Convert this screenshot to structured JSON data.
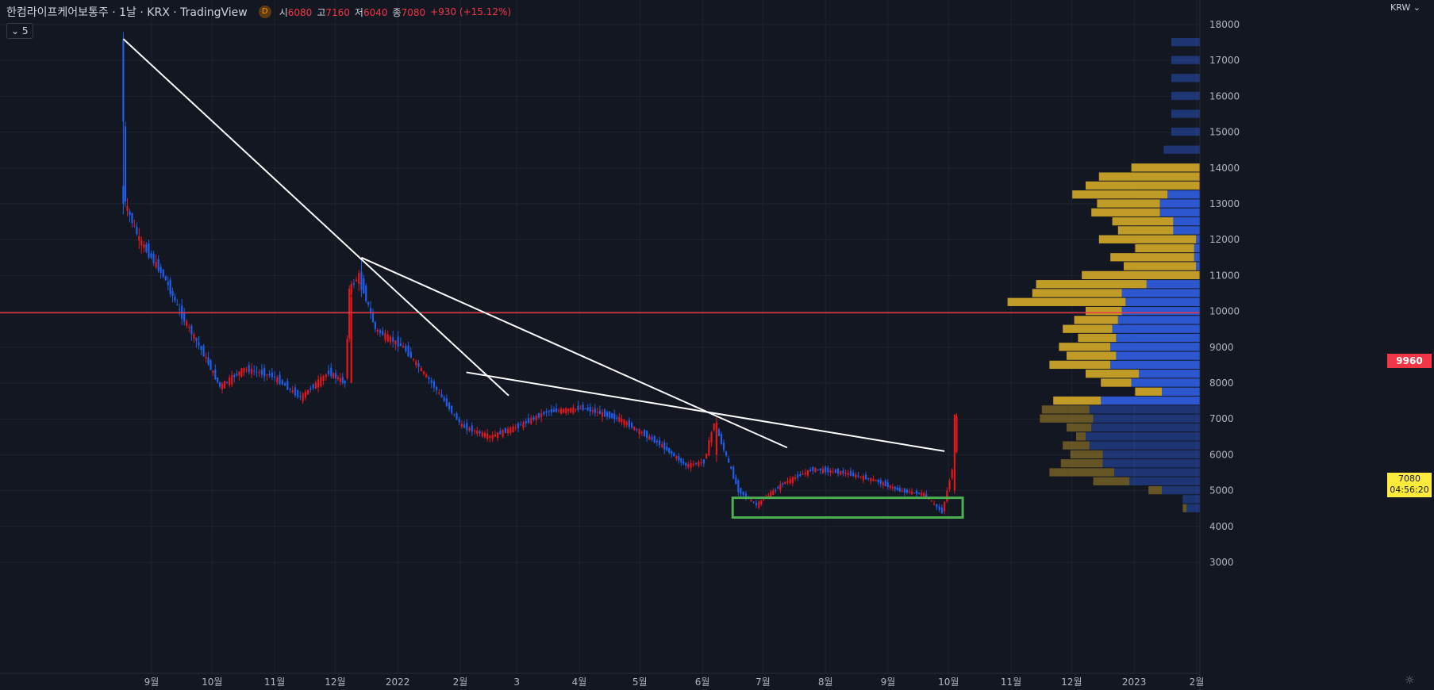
{
  "header": {
    "title": "한컴라이프케어보통주 · 1날 · KRX · TradingView",
    "badge": "D",
    "open_label": "시",
    "open": "6080",
    "high_label": "고",
    "high": "7160",
    "low_label": "저",
    "low": "6040",
    "close_label": "종",
    "close": "7080",
    "change": "+930 (+15.12%)"
  },
  "indicator_toggle": "⌄ 5",
  "price_axis": {
    "currency": "KRW ⌄",
    "ticks": [
      "18000",
      "17000",
      "16000",
      "15000",
      "14000",
      "13000",
      "12000",
      "11000",
      "10000",
      "9000",
      "8000",
      "7000",
      "6000",
      "5000",
      "4000",
      "3000"
    ],
    "hline_label": "9960",
    "last_price": "7080",
    "countdown": "04:56:20"
  },
  "time_axis": {
    "labels": [
      "9월",
      "10월",
      "11월",
      "12월",
      "2022",
      "2월",
      "3",
      "4월",
      "5월",
      "6월",
      "7월",
      "8월",
      "9월",
      "10월",
      "11월",
      "12월",
      "2023",
      "2월"
    ]
  },
  "colors": {
    "background": "#131722",
    "grid": "#1f2330",
    "up": "#e5171b",
    "down": "#1f5eea",
    "hline": "#f23645",
    "trendline": "#ffffff",
    "box": "#4caf50",
    "vp_up": "#c9a227",
    "vp_down": "#2d5bd8"
  },
  "chart_data": {
    "type": "candlestick",
    "symbol": "한컴라이프케어보통주",
    "interval": "1날",
    "exchange": "KRX",
    "y_range": [
      2700,
      18500
    ],
    "horizontal_line": 9960,
    "last": 7080,
    "price_path": [
      {
        "date": "2021-08-18",
        "price": 17600
      },
      {
        "date": "2021-08-20",
        "price": 13000
      },
      {
        "date": "2021-08-27",
        "price": 12000
      },
      {
        "date": "2021-09-08",
        "price": 11000
      },
      {
        "date": "2021-09-16",
        "price": 10000
      },
      {
        "date": "2021-09-28",
        "price": 8800
      },
      {
        "date": "2021-10-06",
        "price": 7900
      },
      {
        "date": "2021-10-18",
        "price": 8400
      },
      {
        "date": "2021-11-01",
        "price": 8200
      },
      {
        "date": "2021-11-15",
        "price": 7600
      },
      {
        "date": "2021-11-29",
        "price": 8300
      },
      {
        "date": "2021-12-07",
        "price": 8000
      },
      {
        "date": "2021-12-09",
        "price": 10600
      },
      {
        "date": "2021-12-14",
        "price": 11000
      },
      {
        "date": "2021-12-22",
        "price": 9500
      },
      {
        "date": "2022-01-05",
        "price": 9000
      },
      {
        "date": "2022-01-19",
        "price": 8000
      },
      {
        "date": "2022-02-03",
        "price": 6800
      },
      {
        "date": "2022-02-17",
        "price": 6500
      },
      {
        "date": "2022-03-03",
        "price": 6800
      },
      {
        "date": "2022-03-17",
        "price": 7200
      },
      {
        "date": "2022-04-04",
        "price": 7300
      },
      {
        "date": "2022-04-22",
        "price": 7000
      },
      {
        "date": "2022-05-12",
        "price": 6300
      },
      {
        "date": "2022-05-25",
        "price": 5700
      },
      {
        "date": "2022-06-03",
        "price": 5800
      },
      {
        "date": "2022-06-08",
        "price": 6900
      },
      {
        "date": "2022-06-20",
        "price": 5000
      },
      {
        "date": "2022-06-29",
        "price": 4600
      },
      {
        "date": "2022-07-12",
        "price": 5200
      },
      {
        "date": "2022-07-27",
        "price": 5600
      },
      {
        "date": "2022-08-11",
        "price": 5500
      },
      {
        "date": "2022-08-26",
        "price": 5300
      },
      {
        "date": "2022-09-08",
        "price": 5000
      },
      {
        "date": "2022-09-20",
        "price": 4900
      },
      {
        "date": "2022-09-29",
        "price": 4400
      },
      {
        "date": "2022-10-04",
        "price": 5600
      },
      {
        "date": "2022-10-05",
        "price": 7080
      }
    ],
    "trendlines": [
      {
        "from": {
          "date": "2021-08-18",
          "price": 17600
        },
        "to": {
          "date": "2022-02-25",
          "price": 7650
        }
      },
      {
        "from": {
          "date": "2021-12-14",
          "price": 11500
        },
        "to": {
          "date": "2022-07-13",
          "price": 6200
        }
      },
      {
        "from": {
          "date": "2022-02-04",
          "price": 8300
        },
        "to": {
          "date": "2022-09-29",
          "price": 6100
        }
      }
    ],
    "support_box": {
      "date_from": "2022-06-16",
      "date_to": "2022-10-08",
      "price_from": 4250,
      "price_to": 4800
    },
    "volume_profile": [
      {
        "price": 17500,
        "up": 0,
        "down": 0.15,
        "faded": true
      },
      {
        "price": 17000,
        "up": 0,
        "down": 0.15,
        "faded": true
      },
      {
        "price": 16500,
        "up": 0,
        "down": 0.15,
        "faded": true
      },
      {
        "price": 16000,
        "up": 0,
        "down": 0.15,
        "faded": true
      },
      {
        "price": 15500,
        "up": 0,
        "down": 0.15,
        "faded": true
      },
      {
        "price": 15000,
        "up": 0,
        "down": 0.15,
        "faded": true
      },
      {
        "price": 14500,
        "up": 0,
        "down": 0.19,
        "faded": true
      },
      {
        "price": 14000,
        "up": 0.36,
        "down": 0,
        "faded": false
      },
      {
        "price": 13750,
        "up": 0.53,
        "down": 0,
        "faded": false
      },
      {
        "price": 13500,
        "up": 0.6,
        "down": 0,
        "faded": false
      },
      {
        "price": 13250,
        "up": 0.5,
        "down": 0.17,
        "faded": false
      },
      {
        "price": 13000,
        "up": 0.33,
        "down": 0.21,
        "faded": false
      },
      {
        "price": 12750,
        "up": 0.36,
        "down": 0.21,
        "faded": false
      },
      {
        "price": 12500,
        "up": 0.32,
        "down": 0.14,
        "faded": false
      },
      {
        "price": 12250,
        "up": 0.29,
        "down": 0.14,
        "faded": false
      },
      {
        "price": 12000,
        "up": 0.51,
        "down": 0.02,
        "faded": false
      },
      {
        "price": 11750,
        "up": 0.31,
        "down": 0.03,
        "faded": false
      },
      {
        "price": 11500,
        "up": 0.44,
        "down": 0.03,
        "faded": false
      },
      {
        "price": 11250,
        "up": 0.38,
        "down": 0.02,
        "faded": false
      },
      {
        "price": 11000,
        "up": 0.62,
        "down": 0,
        "faded": false
      },
      {
        "price": 10750,
        "up": 0.58,
        "down": 0.28,
        "faded": false
      },
      {
        "price": 10500,
        "up": 0.47,
        "down": 0.41,
        "faded": false
      },
      {
        "price": 10250,
        "up": 0.62,
        "down": 0.39,
        "faded": false
      },
      {
        "price": 10000,
        "up": 0.19,
        "down": 0.41,
        "faded": false
      },
      {
        "price": 9750,
        "up": 0.23,
        "down": 0.43,
        "faded": false
      },
      {
        "price": 9500,
        "up": 0.26,
        "down": 0.46,
        "faded": false
      },
      {
        "price": 9250,
        "up": 0.2,
        "down": 0.44,
        "faded": false
      },
      {
        "price": 9000,
        "up": 0.27,
        "down": 0.47,
        "faded": false
      },
      {
        "price": 8750,
        "up": 0.26,
        "down": 0.44,
        "faded": false
      },
      {
        "price": 8500,
        "up": 0.32,
        "down": 0.47,
        "faded": false
      },
      {
        "price": 8250,
        "up": 0.28,
        "down": 0.32,
        "faded": false
      },
      {
        "price": 8000,
        "up": 0.16,
        "down": 0.36,
        "faded": false
      },
      {
        "price": 7750,
        "up": 0.14,
        "down": 0.2,
        "faded": false
      },
      {
        "price": 7500,
        "up": 0.25,
        "down": 0.52,
        "faded": false
      },
      {
        "price": 7250,
        "up": 0.25,
        "down": 0.58,
        "faded": true
      },
      {
        "price": 7000,
        "up": 0.28,
        "down": 0.56,
        "faded": true
      },
      {
        "price": 6750,
        "up": 0.13,
        "down": 0.57,
        "faded": true
      },
      {
        "price": 6500,
        "up": 0.05,
        "down": 0.6,
        "faded": true
      },
      {
        "price": 6250,
        "up": 0.14,
        "down": 0.58,
        "faded": true
      },
      {
        "price": 6000,
        "up": 0.17,
        "down": 0.51,
        "faded": true
      },
      {
        "price": 5750,
        "up": 0.22,
        "down": 0.51,
        "faded": true
      },
      {
        "price": 5500,
        "up": 0.34,
        "down": 0.45,
        "faded": true
      },
      {
        "price": 5250,
        "up": 0.19,
        "down": 0.37,
        "faded": true
      },
      {
        "price": 5000,
        "up": 0.07,
        "down": 0.2,
        "faded": true
      },
      {
        "price": 4750,
        "up": 0,
        "down": 0.09,
        "faded": true
      },
      {
        "price": 4500,
        "up": 0.02,
        "down": 0.07,
        "faded": true
      }
    ]
  }
}
